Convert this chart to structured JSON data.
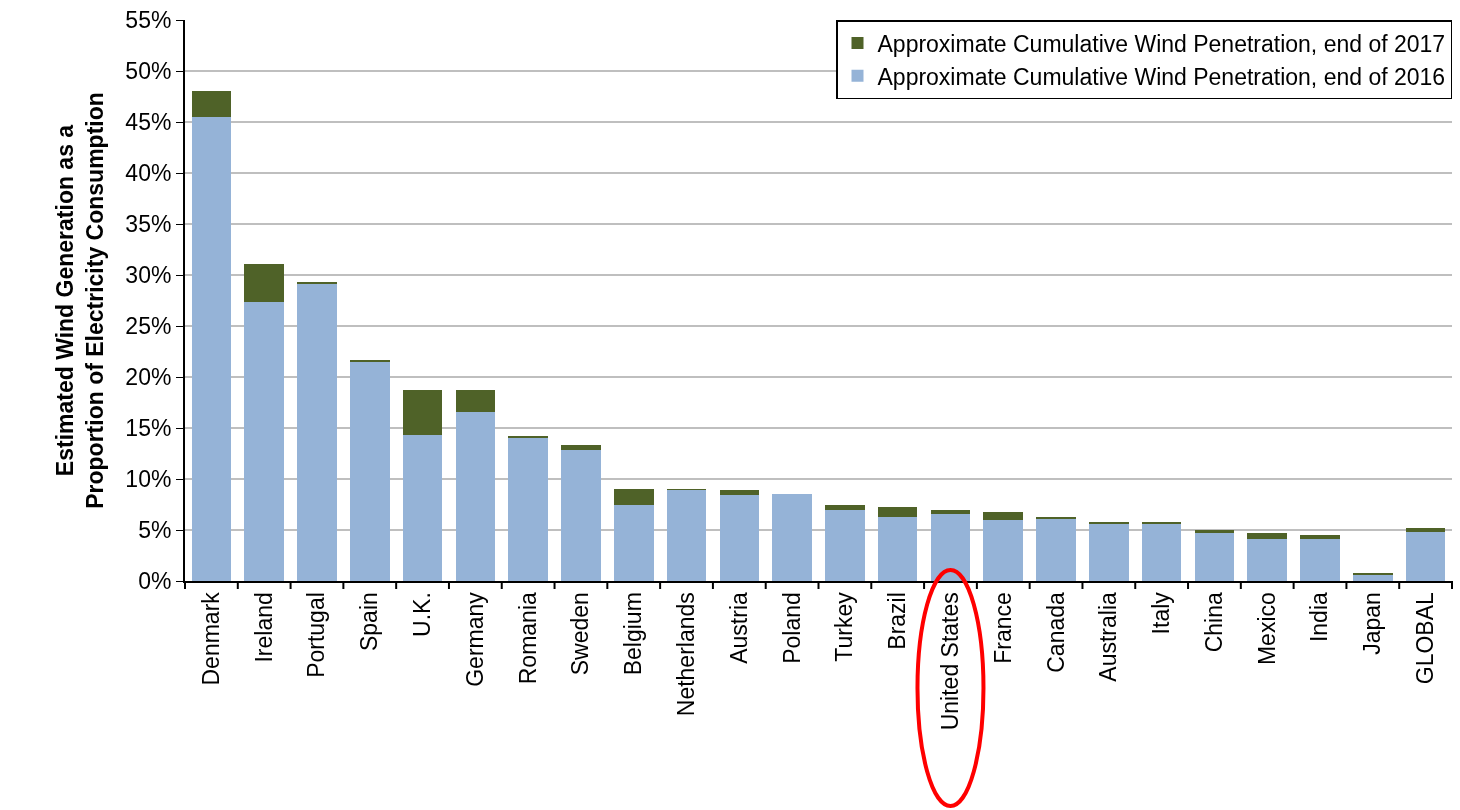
{
  "chart_data": {
    "type": "bar",
    "stacked": true,
    "ylabel": "Estimated Wind Generation as a\nProportion of Electricity Consumption",
    "categories": [
      "Denmark",
      "Ireland",
      "Portugal",
      "Spain",
      "U.K.",
      "Germany",
      "Romania",
      "Sweden",
      "Belgium",
      "Netherlands",
      "Austria",
      "Poland",
      "Turkey",
      "Brazil",
      "United States",
      "France",
      "Canada",
      "Australia",
      "Italy",
      "China",
      "Mexico",
      "India",
      "Japan",
      "GLOBAL"
    ],
    "series": [
      {
        "name": "Approximate Cumulative Wind Penetration, end of 2016",
        "color": "#95b3d7",
        "values": [
          45.5,
          27.4,
          29.1,
          21.5,
          14.3,
          16.6,
          14.0,
          12.8,
          7.5,
          8.9,
          8.4,
          8.5,
          7.0,
          6.3,
          6.6,
          6.0,
          6.1,
          5.6,
          5.6,
          4.7,
          4.1,
          4.1,
          0.6,
          4.8
        ]
      },
      {
        "name": "Approximate Cumulative Wind Penetration, end of 2017",
        "color": "#4f6228",
        "values": [
          2.5,
          3.7,
          0.2,
          0.2,
          4.4,
          2.1,
          0.2,
          0.5,
          1.5,
          0.1,
          0.5,
          0,
          0.5,
          1.0,
          0.4,
          0.8,
          0.2,
          0.2,
          0.2,
          0.3,
          0.6,
          0.4,
          0.2,
          0.4
        ]
      }
    ],
    "ylim": [
      0,
      55
    ],
    "yticks": [
      {
        "value": 0,
        "label": "0%"
      },
      {
        "value": 5,
        "label": "5%"
      },
      {
        "value": 10,
        "label": "10%"
      },
      {
        "value": 15,
        "label": "15%"
      },
      {
        "value": 20,
        "label": "20%"
      },
      {
        "value": 25,
        "label": "25%"
      },
      {
        "value": 30,
        "label": "30%"
      },
      {
        "value": 35,
        "label": "35%"
      },
      {
        "value": 40,
        "label": "40%"
      },
      {
        "value": 45,
        "label": "45%"
      },
      {
        "value": 50,
        "label": "50%"
      },
      {
        "value": 55,
        "label": "55%"
      }
    ],
    "grid": "y",
    "legend": "top right"
  }
}
